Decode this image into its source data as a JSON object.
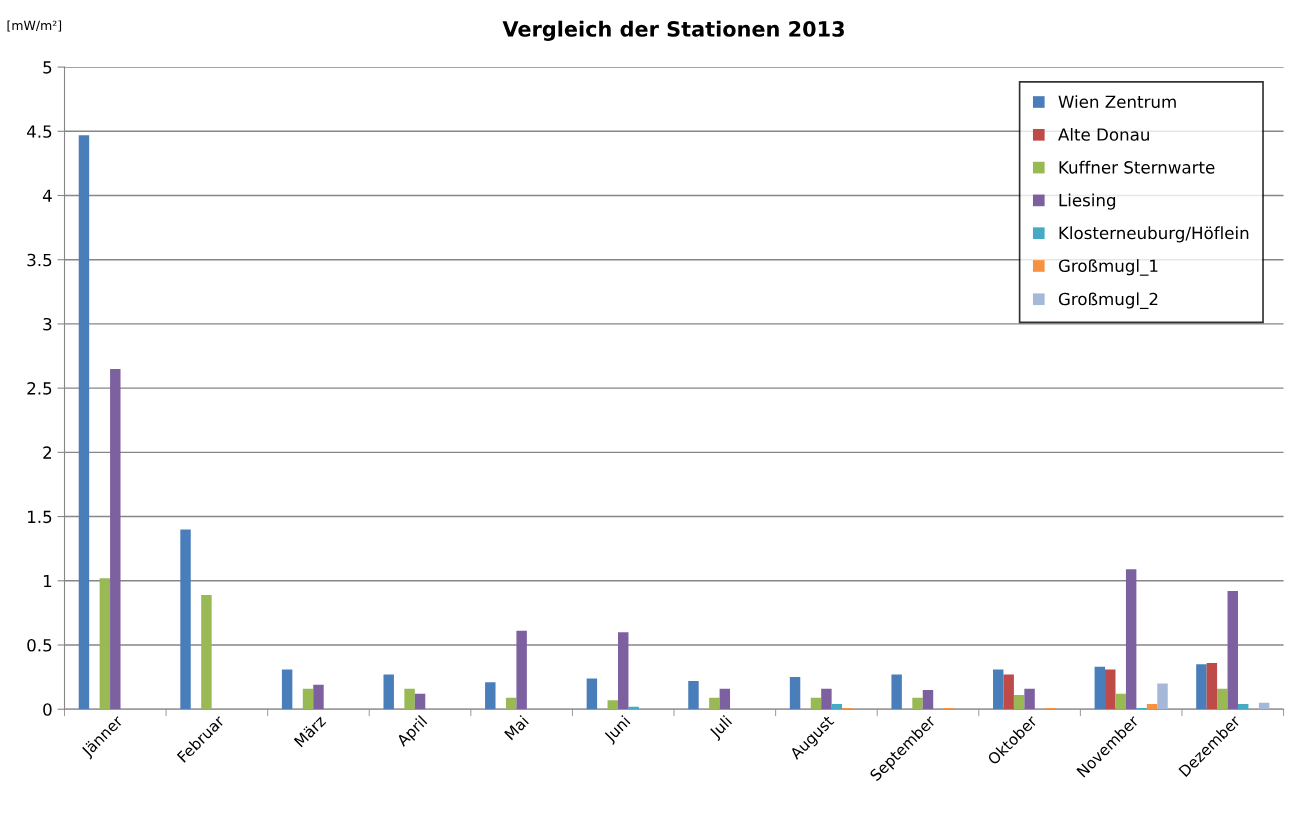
{
  "chart_data": {
    "type": "bar",
    "title": "Vergleich der Stationen 2013",
    "ylabel": "[mW/m²]",
    "categories": [
      "Jänner",
      "Februar",
      "März",
      "April",
      "Mai",
      "Juni",
      "Juli",
      "August",
      "September",
      "Oktober",
      "November",
      "Dezember"
    ],
    "series": [
      {
        "name": "Wien Zentrum",
        "color": "#4a7ebb",
        "values": [
          4.47,
          1.4,
          0.31,
          0.27,
          0.21,
          0.24,
          0.22,
          0.25,
          0.27,
          0.31,
          0.33,
          0.35
        ]
      },
      {
        "name": "Alte Donau",
        "color": "#be4b48",
        "values": [
          null,
          null,
          null,
          null,
          null,
          null,
          null,
          null,
          null,
          0.27,
          0.31,
          0.36
        ]
      },
      {
        "name": "Kuffner Sternwarte",
        "color": "#98b954",
        "values": [
          1.02,
          0.89,
          0.16,
          0.16,
          0.09,
          0.07,
          0.09,
          0.09,
          0.09,
          0.11,
          0.12,
          0.16
        ]
      },
      {
        "name": "Liesing",
        "color": "#7d60a0",
        "values": [
          2.65,
          null,
          0.19,
          0.12,
          0.61,
          0.6,
          0.16,
          0.16,
          0.15,
          0.16,
          1.09,
          0.92
        ]
      },
      {
        "name": "Klosterneuburg/Höflein",
        "color": "#46aac5",
        "values": [
          null,
          null,
          null,
          null,
          null,
          0.02,
          null,
          0.04,
          null,
          null,
          0.01,
          0.04
        ]
      },
      {
        "name": "Großmugl_1",
        "color": "#f69240",
        "values": [
          null,
          null,
          null,
          null,
          null,
          null,
          null,
          0.01,
          0.01,
          0.01,
          0.04,
          null
        ]
      },
      {
        "name": "Großmugl_2",
        "color": "#a5b8d8",
        "values": [
          null,
          null,
          null,
          null,
          null,
          null,
          null,
          null,
          null,
          null,
          0.2,
          0.05
        ]
      }
    ],
    "ylim": [
      0,
      5
    ],
    "yticks": [
      0,
      0.5,
      1,
      1.5,
      2,
      2.5,
      3,
      3.5,
      4,
      4.5,
      5
    ],
    "grid": "y",
    "legend": "top right"
  }
}
